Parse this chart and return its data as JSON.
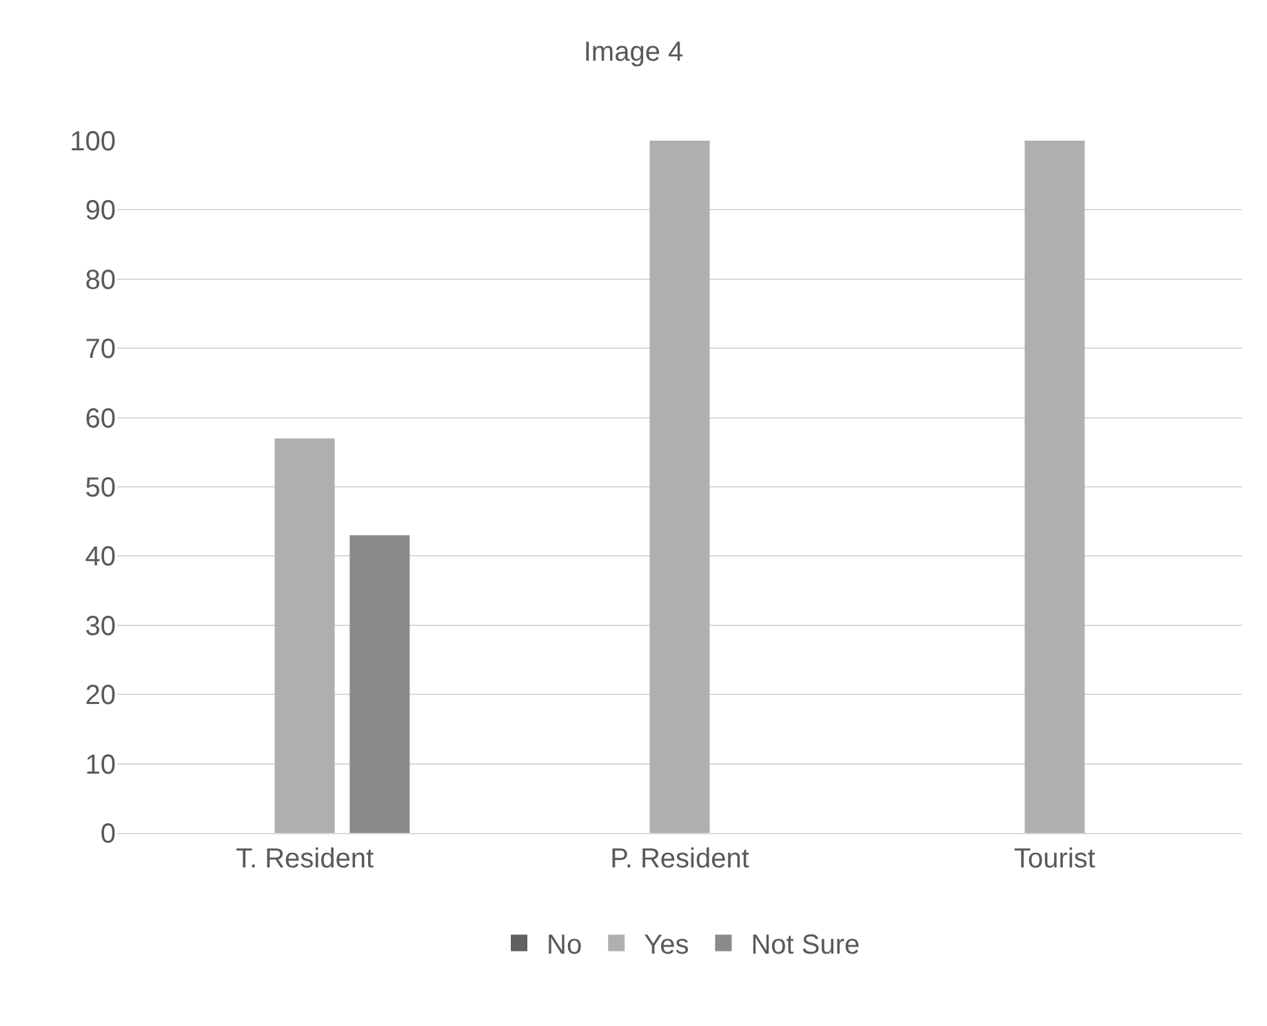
{
  "chart_data": {
    "type": "bar",
    "title": "Image 4",
    "categories": [
      "T. Resident",
      "P. Resident",
      "Tourist"
    ],
    "series": [
      {
        "name": "No",
        "color": "#606060",
        "values": [
          0,
          0,
          0
        ]
      },
      {
        "name": "Yes",
        "color": "#afafaf",
        "values": [
          57,
          100,
          100
        ]
      },
      {
        "name": "Not Sure",
        "color": "#8a8a8a",
        "values": [
          43,
          0,
          0
        ]
      }
    ],
    "ylim": [
      0,
      100
    ],
    "yticks": [
      0,
      10,
      20,
      30,
      40,
      50,
      60,
      70,
      80,
      90,
      100
    ],
    "grid": "y",
    "legend": "bottom"
  }
}
